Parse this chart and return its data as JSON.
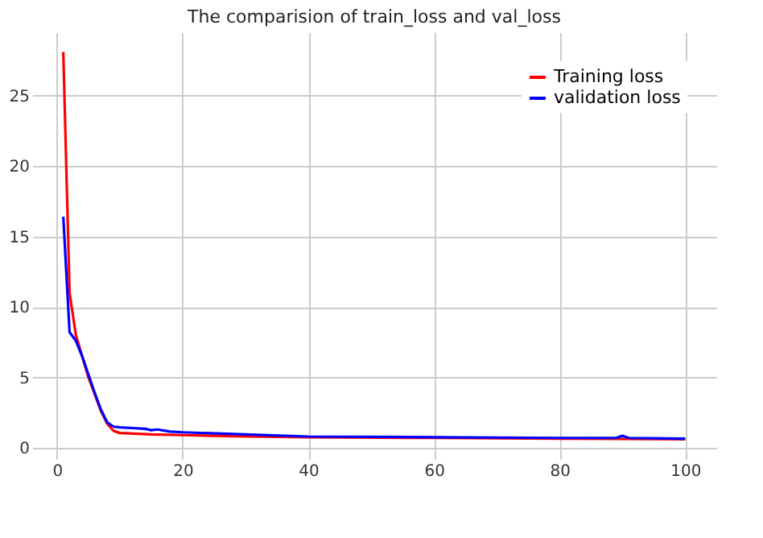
{
  "chart_data": {
    "type": "line",
    "title": "The comparision of train_loss and val_loss",
    "xlim": [
      -3.95,
      104.95
    ],
    "xticks": [
      0,
      20,
      40,
      60,
      80,
      100
    ],
    "ylim": [
      -0.8,
      29.5
    ],
    "yticks": [
      0,
      5,
      10,
      15,
      20,
      25
    ],
    "grid": true,
    "legend": "top right",
    "line_style": "solid",
    "series": [
      {
        "name": "Training loss",
        "color": "#ff0000",
        "x": [
          1,
          2,
          3,
          4,
          5,
          6,
          7,
          8,
          9,
          10,
          15,
          20,
          30,
          40,
          60,
          80,
          100
        ],
        "values": [
          28.1,
          11,
          8,
          6.5,
          5,
          3.8,
          2.6,
          1.7,
          1.2,
          1.05,
          0.95,
          0.9,
          0.8,
          0.75,
          0.7,
          0.65,
          0.6
        ]
      },
      {
        "name": "validation loss",
        "color": "#0000ff",
        "x": [
          1,
          2,
          3,
          4,
          5,
          6,
          7,
          8,
          9,
          10,
          12,
          14,
          15,
          16,
          18,
          20,
          30,
          40,
          60,
          80,
          89,
          90,
          91,
          100
        ],
        "values": [
          16.4,
          8.2,
          7.6,
          6.5,
          5.2,
          3.9,
          2.7,
          1.8,
          1.5,
          1.45,
          1.4,
          1.35,
          1.25,
          1.3,
          1.15,
          1.1,
          0.95,
          0.8,
          0.75,
          0.7,
          0.7,
          0.85,
          0.7,
          0.65
        ]
      }
    ]
  }
}
